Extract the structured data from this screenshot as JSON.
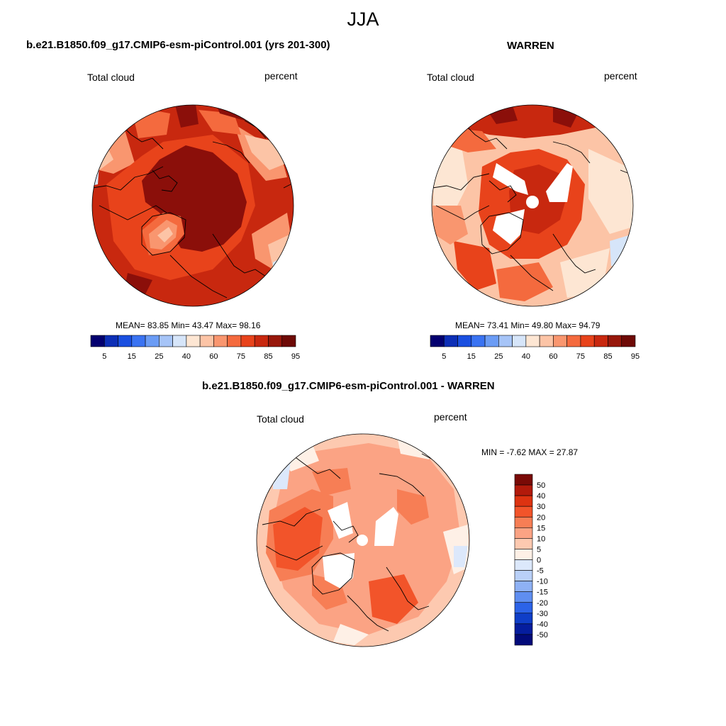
{
  "title": "JJA",
  "panels": [
    {
      "id": "control",
      "heading": "b.e21.B1850.f09_g17.CMIP6-esm-piControl.001 (yrs 201-300)",
      "variable": "Total cloud",
      "units": "percent",
      "stats": "MEAN=  83.85  Min=  43.47  Max=  98.16",
      "colorbar_labels": [
        "5",
        "15",
        "25",
        "40",
        "60",
        "75",
        "85",
        "95"
      ],
      "colorbar_colors": [
        "#03006f",
        "#0d2fb6",
        "#1a4fe0",
        "#3a73f2",
        "#6b9cf5",
        "#a6c4f7",
        "#d6e5f9",
        "#fde6d3",
        "#fcc4a6",
        "#f9966f",
        "#f46a3e",
        "#e8431b",
        "#c8280f",
        "#97170b",
        "#6e0a06"
      ]
    },
    {
      "id": "warren",
      "heading": "WARREN",
      "variable": "Total cloud",
      "units": "percent",
      "stats": "MEAN=  73.41  Min=  49.80  Max=  94.79",
      "colorbar_labels": [
        "5",
        "15",
        "25",
        "40",
        "60",
        "75",
        "85",
        "95"
      ],
      "colorbar_colors": [
        "#03006f",
        "#0d2fb6",
        "#1a4fe0",
        "#3a73f2",
        "#6b9cf5",
        "#a6c4f7",
        "#d6e5f9",
        "#fde6d3",
        "#fcc4a6",
        "#f9966f",
        "#f46a3e",
        "#e8431b",
        "#c8280f",
        "#97170b",
        "#6e0a06"
      ]
    },
    {
      "id": "difference",
      "heading": "b.e21.B1850.f09_g17.CMIP6-esm-piControl.001 - WARREN",
      "variable": "Total cloud",
      "units": "percent",
      "stats": "MIN =  -7.62 MAX =  27.87",
      "colorbar_labels": [
        "50",
        "40",
        "30",
        "20",
        "15",
        "10",
        "5",
        "0",
        "-5",
        "-10",
        "-15",
        "-20",
        "-30",
        "-40",
        "-50"
      ],
      "colorbar_colors": [
        "#7a0a06",
        "#b21a0b",
        "#dd3311",
        "#f2542a",
        "#f77e55",
        "#fba384",
        "#fdc9b0",
        "#fef0e6",
        "#dce8fb",
        "#b9d0f8",
        "#8eb1f5",
        "#5f8ef1",
        "#2c63e8",
        "#0f3ec8",
        "#051d9e",
        "#020a7a"
      ]
    }
  ],
  "map_colors": {
    "deep": "#8b0f0a",
    "dark": "#c8280f",
    "mid": "#e8431b",
    "orange": "#f46a3e",
    "salmon": "#f9966f",
    "light": "#fcc4a6",
    "pale": "#fde6d3",
    "blue_pale": "#d6e5f9",
    "missing": "#ffffff"
  }
}
